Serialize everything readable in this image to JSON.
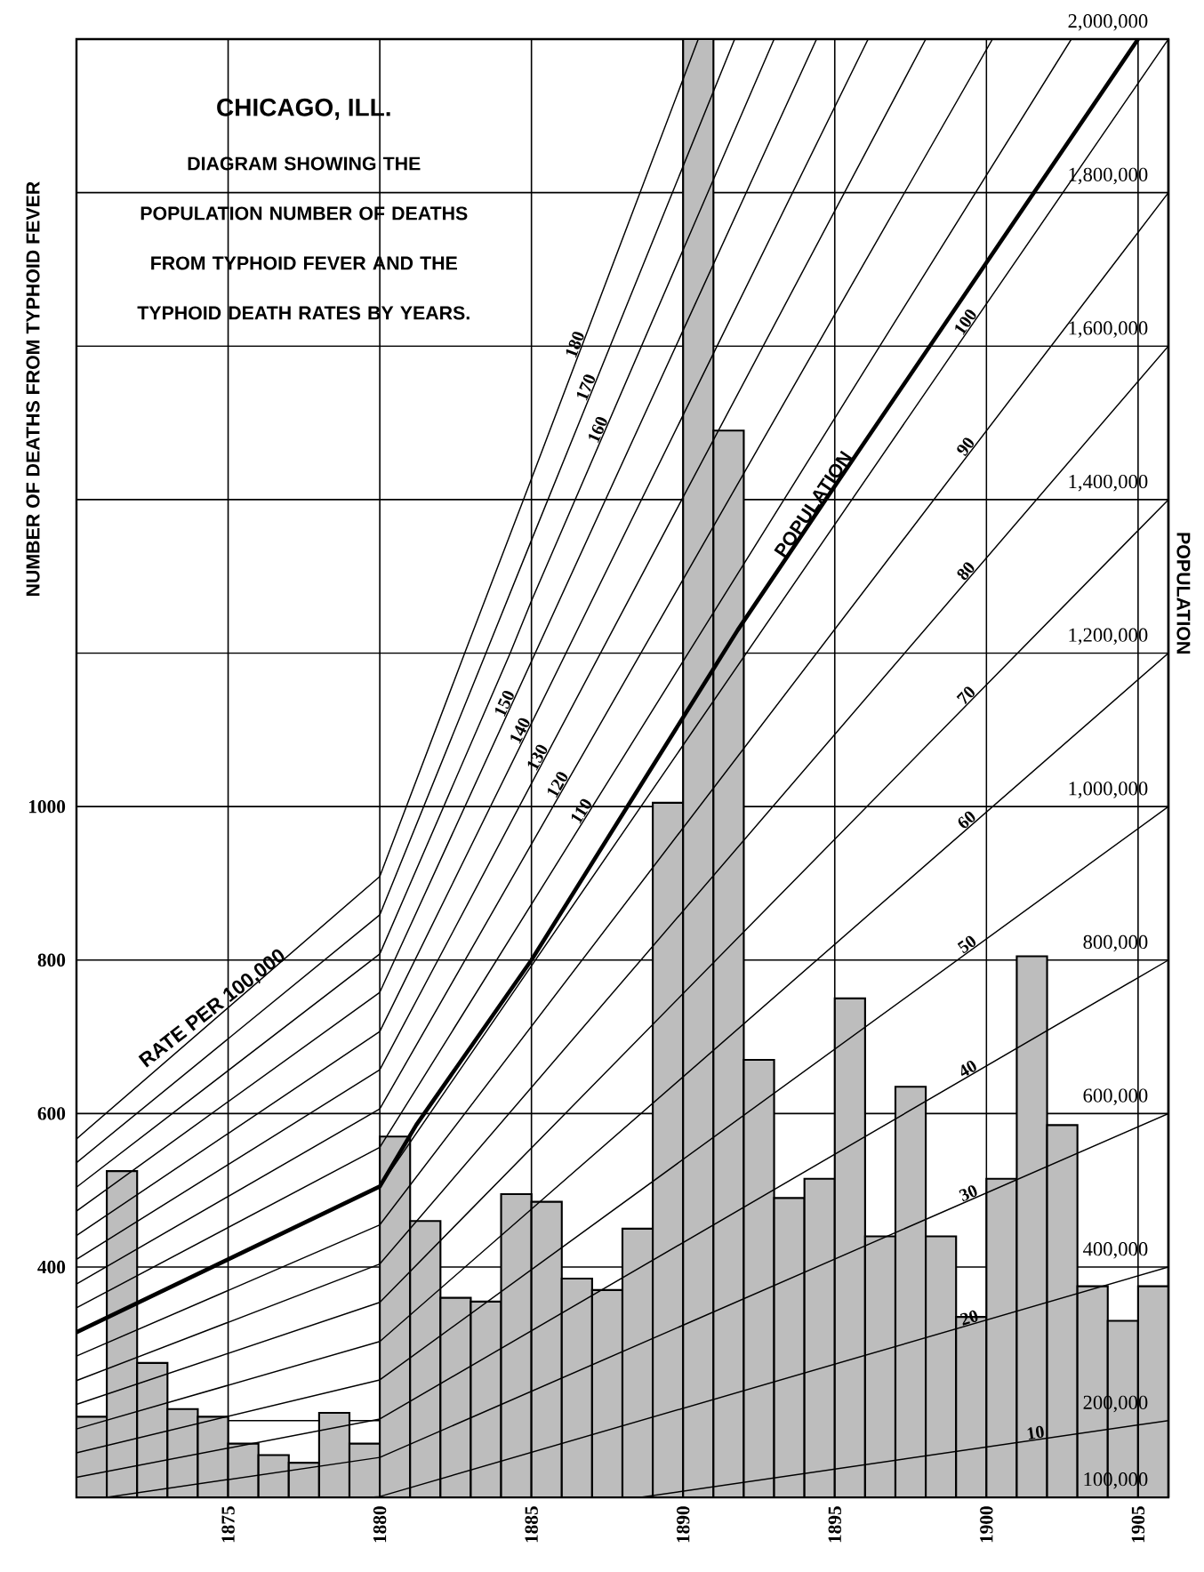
{
  "chart_data": {
    "type": "histogram",
    "title": "CHICAGO, ILL.",
    "subtitle": "DIAGRAM SHOWING THE POPULATION NUMBER OF DEATHS FROM TYPHOID FEVER AND THE TYPHOID DEATH RATES BY YEARS.",
    "ylabel": "NUMBER OF DEATHS FROM TYPHOID FEVER",
    "y2label": "POPULATION",
    "annotations": [
      "RATE PER 100,000"
    ],
    "bins": [
      1870,
      1871,
      1872,
      1873,
      1874,
      1875,
      1876,
      1877,
      1878,
      1879,
      1880,
      1881,
      1882,
      1883,
      1884,
      1885,
      1886,
      1887,
      1888,
      1889,
      1890,
      1891,
      1892,
      1893,
      1894,
      1895,
      1896,
      1897,
      1898,
      1899,
      1900,
      1901,
      1902,
      1903,
      1904,
      1905,
      1906
    ],
    "values": [
      205,
      525,
      275,
      215,
      205,
      170,
      155,
      145,
      210,
      170,
      570,
      460,
      360,
      355,
      495,
      485,
      385,
      370,
      450,
      1005,
      2000,
      1490,
      670,
      490,
      515,
      750,
      440,
      635,
      440,
      335,
      515,
      805,
      585,
      375,
      330,
      375
    ],
    "color": "#bdbdbd",
    "grid": true,
    "xlim": [
      1870,
      1906
    ],
    "xticks": [
      1875,
      1880,
      1885,
      1890,
      1895,
      1900,
      1905
    ],
    "ylim": [
      100,
      2000
    ],
    "yticks": [
      {
        "value": 200,
        "label": null
      },
      400,
      600,
      800,
      1000,
      {
        "value": 1200,
        "label": null
      },
      {
        "value": 1400,
        "label": null
      },
      {
        "value": 1600,
        "label": null
      },
      {
        "value": 1800,
        "label": null
      },
      {
        "value": 2000,
        "label": null
      }
    ],
    "y2lim": [
      100000,
      2000000
    ],
    "y2ticks": [
      {
        "value": 100000,
        "label": "100,000"
      },
      {
        "value": 200000,
        "label": "200,000"
      },
      {
        "value": 400000,
        "label": "400,000"
      },
      {
        "value": 600000,
        "label": "600,000"
      },
      {
        "value": 800000,
        "label": "800,000"
      },
      {
        "value": 1000000,
        "label": "1,000,000"
      },
      {
        "value": 1200000,
        "label": "1,200,000"
      },
      {
        "value": 1400000,
        "label": "1,400,000"
      },
      {
        "value": 1600000,
        "label": "1,600,000"
      },
      {
        "value": 1800000,
        "label": "1,800,000"
      },
      {
        "value": 2000000,
        "label": "2,000,000"
      }
    ],
    "series": [
      {
        "name": "POPULATION",
        "type": "line",
        "axis": "y2",
        "color": "#000000",
        "x": [
          1870,
          1875,
          1880,
          1881.2,
          1885,
          1891.8,
          1894.7,
          1905
        ],
        "values": [
          315000,
          410000,
          505000,
          585000,
          800000,
          1230000,
          1400000,
          2000000
        ]
      },
      {
        "name": "10",
        "type": "line",
        "color": "#000000",
        "x": [
          1888.6,
          1906
        ],
        "values": [
          100,
          200
        ]
      },
      {
        "name": "20",
        "type": "line",
        "color": "#000000",
        "x": [
          1879.7,
          1880,
          1906
        ],
        "values": [
          100,
          101,
          400
        ]
      },
      {
        "name": "30",
        "type": "line",
        "color": "#000000",
        "x": [
          1871,
          1880,
          1906
        ],
        "values": [
          100,
          152,
          600
        ]
      },
      {
        "name": "40",
        "type": "line",
        "color": "#000000",
        "x": [
          1870,
          1880,
          1906
        ],
        "values": [
          126,
          202,
          800
        ]
      },
      {
        "name": "50",
        "type": "line",
        "color": "#000000",
        "x": [
          1870,
          1880,
          1906
        ],
        "values": [
          158,
          253,
          1000
        ]
      },
      {
        "name": "60",
        "type": "line",
        "color": "#000000",
        "x": [
          1870,
          1880,
          1906
        ],
        "values": [
          189,
          303,
          1200
        ]
      },
      {
        "name": "70",
        "type": "line",
        "color": "#000000",
        "x": [
          1870,
          1880,
          1906
        ],
        "values": [
          221,
          354,
          1400
        ]
      },
      {
        "name": "80",
        "type": "line",
        "color": "#000000",
        "x": [
          1870,
          1880,
          1906
        ],
        "values": [
          252,
          404,
          1600
        ]
      },
      {
        "name": "90",
        "type": "line",
        "color": "#000000",
        "x": [
          1870,
          1880,
          1906
        ],
        "values": [
          284,
          455,
          1800
        ]
      },
      {
        "name": "100",
        "type": "line",
        "color": "#000000",
        "x": [
          1870,
          1880,
          1906
        ],
        "values": [
          315,
          505,
          2000
        ]
      },
      {
        "name": "110",
        "type": "line",
        "color": "#000000",
        "x": [
          1870,
          1880,
          1902.8
        ],
        "values": [
          347,
          556,
          2000
        ]
      },
      {
        "name": "120",
        "type": "line",
        "color": "#000000",
        "x": [
          1870,
          1880,
          1900.2
        ],
        "values": [
          378,
          606,
          2000
        ]
      },
      {
        "name": "130",
        "type": "line",
        "color": "#000000",
        "x": [
          1870,
          1880,
          1898.0
        ],
        "values": [
          410,
          657,
          2000
        ]
      },
      {
        "name": "140",
        "type": "line",
        "color": "#000000",
        "x": [
          1870,
          1880,
          1896.1
        ],
        "values": [
          441,
          707,
          2000
        ]
      },
      {
        "name": "150",
        "type": "line",
        "color": "#000000",
        "x": [
          1870,
          1880,
          1894.4
        ],
        "values": [
          473,
          758,
          2000
        ]
      },
      {
        "name": "160",
        "type": "line",
        "color": "#000000",
        "x": [
          1870,
          1880,
          1884.3,
          1885,
          1893.0
        ],
        "values": [
          504,
          808,
          1200,
          1268,
          2000
        ]
      },
      {
        "name": "170",
        "type": "line",
        "color": "#000000",
        "x": [
          1870,
          1880,
          1883.5,
          1885,
          1891.7
        ],
        "values": [
          536,
          859,
          1200,
          1347,
          2000
        ]
      },
      {
        "name": "180",
        "type": "line",
        "color": "#000000",
        "x": [
          1870,
          1880,
          1882.8,
          1885,
          1890.5
        ],
        "values": [
          567,
          909,
          1200,
          1427,
          2000
        ]
      }
    ]
  }
}
